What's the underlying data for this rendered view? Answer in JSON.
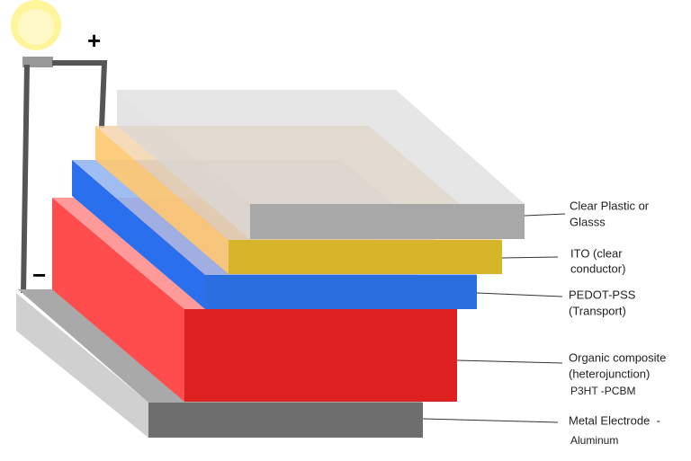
{
  "signs": {
    "plus": "+",
    "minus": "−"
  },
  "layers": [
    {
      "lines": [
        "Clear Plastic or",
        "Glasss"
      ]
    },
    {
      "lines": [
        "ITO (clear",
        "conductor)"
      ]
    },
    {
      "lines": [
        "PEDOT-PSS",
        "(Transport)"
      ]
    },
    {
      "lines": [
        "Organic composite",
        "(heterojunction)",
        "P3HT -PCBM"
      ]
    },
    {
      "lines": [
        "Metal Electrode  -",
        "Aluminum"
      ]
    }
  ]
}
